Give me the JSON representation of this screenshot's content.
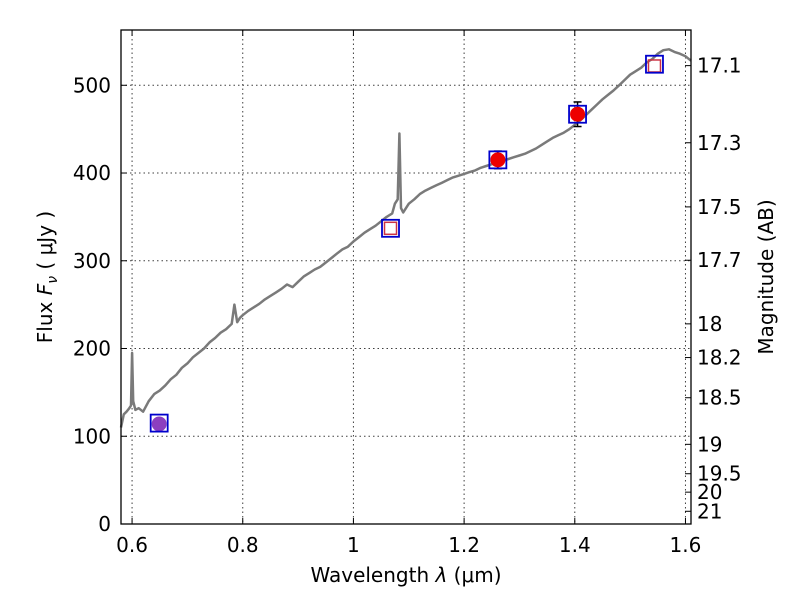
{
  "chart_data": {
    "type": "line",
    "xlabel_text": "Wavelength  ",
    "xlabel_symbol": "λ",
    "xlabel_unit": " (μm)",
    "ylabel_text": "Flux  ",
    "ylabel_symbol": "F",
    "ylabel_sub": "ν",
    "ylabel_unit": "  ( μJy )",
    "y2label": "Magnitude (AB)",
    "xlim": [
      0.58,
      1.61
    ],
    "ylim": [
      0,
      563
    ],
    "xticks": [
      0.6,
      0.8,
      1.0,
      1.2,
      1.4,
      1.6
    ],
    "xtick_labels": [
      "0.6",
      "0.8",
      "1",
      "1.2",
      "1.4",
      "1.6"
    ],
    "yticks": [
      0,
      100,
      200,
      300,
      400,
      500
    ],
    "ytick_labels": [
      "0",
      "100",
      "200",
      "300",
      "400",
      "500"
    ],
    "y2ticks": [
      {
        "label": "17.1",
        "flux": 522.4
      },
      {
        "label": "17.3",
        "flux": 434.5
      },
      {
        "label": "17.5",
        "flux": 361.4
      },
      {
        "label": "17.7",
        "flux": 300.6
      },
      {
        "label": "18",
        "flux": 228.1
      },
      {
        "label": "18.2",
        "flux": 189.7
      },
      {
        "label": "18.5",
        "flux": 143.9
      },
      {
        "label": "19",
        "flux": 90.8
      },
      {
        "label": "19.5",
        "flux": 57.3
      },
      {
        "label": "20",
        "flux": 36.3
      },
      {
        "label": "21",
        "flux": 14.5
      }
    ],
    "grid": true,
    "series": [
      {
        "kind": "spectrum",
        "color": "#7a7a7a",
        "x": [
          0.58,
          0.585,
          0.59,
          0.595,
          0.598,
          0.6,
          0.602,
          0.606,
          0.612,
          0.62,
          0.63,
          0.64,
          0.65,
          0.66,
          0.67,
          0.68,
          0.69,
          0.7,
          0.71,
          0.72,
          0.73,
          0.74,
          0.75,
          0.76,
          0.77,
          0.78,
          0.785,
          0.79,
          0.795,
          0.8,
          0.81,
          0.82,
          0.83,
          0.84,
          0.85,
          0.86,
          0.87,
          0.88,
          0.89,
          0.9,
          0.91,
          0.92,
          0.93,
          0.94,
          0.95,
          0.96,
          0.97,
          0.98,
          0.99,
          1.0,
          1.01,
          1.02,
          1.03,
          1.04,
          1.05,
          1.06,
          1.07,
          1.075,
          1.08,
          1.083,
          1.086,
          1.09,
          1.095,
          1.1,
          1.11,
          1.12,
          1.13,
          1.14,
          1.15,
          1.16,
          1.17,
          1.18,
          1.19,
          1.2,
          1.21,
          1.22,
          1.23,
          1.24,
          1.25,
          1.26,
          1.27,
          1.28,
          1.29,
          1.3,
          1.31,
          1.32,
          1.33,
          1.34,
          1.35,
          1.36,
          1.37,
          1.38,
          1.39,
          1.4,
          1.41,
          1.42,
          1.43,
          1.44,
          1.45,
          1.46,
          1.47,
          1.48,
          1.49,
          1.5,
          1.51,
          1.52,
          1.53,
          1.54,
          1.55,
          1.56,
          1.57,
          1.58,
          1.59,
          1.6,
          1.61
        ],
        "y": [
          110,
          125,
          128,
          132,
          135,
          195,
          140,
          130,
          132,
          128,
          140,
          148,
          152,
          158,
          165,
          170,
          178,
          183,
          190,
          195,
          200,
          207,
          212,
          218,
          222,
          228,
          250,
          230,
          235,
          238,
          243,
          247,
          251,
          256,
          260,
          264,
          268,
          273,
          270,
          276,
          282,
          286,
          290,
          293,
          298,
          303,
          308,
          313,
          316,
          322,
          327,
          332,
          336,
          340,
          345,
          350,
          354,
          365,
          370,
          445,
          360,
          355,
          360,
          365,
          370,
          376,
          380,
          383,
          386,
          389,
          392,
          395,
          397,
          399,
          401,
          403,
          406,
          408,
          410,
          412,
          414,
          416,
          418,
          420,
          422,
          425,
          428,
          432,
          436,
          440,
          443,
          446,
          450,
          455,
          460,
          466,
          472,
          478,
          484,
          489,
          494,
          500,
          506,
          512,
          516,
          520,
          526,
          530,
          536,
          540,
          541,
          538,
          536,
          533,
          528
        ]
      }
    ],
    "open_squares": {
      "x": [
        0.649,
        1.067,
        1.261,
        1.405,
        1.544
      ],
      "y": [
        115,
        337,
        415,
        467,
        524
      ]
    },
    "filled_points": {
      "x": [
        0.649,
        1.261,
        1.405
      ],
      "y": [
        114,
        415,
        467
      ],
      "yerr": [
        6,
        10,
        14
      ]
    },
    "small_squares": {
      "x": [
        1.067,
        1.544
      ],
      "y": [
        337,
        522
      ]
    },
    "colors": {
      "spectrum": "#7a7a7a",
      "square": "#0000cc",
      "point": "#ee0000",
      "small_square": "#cc3344",
      "purple_fill": "#8c3fbf"
    }
  }
}
